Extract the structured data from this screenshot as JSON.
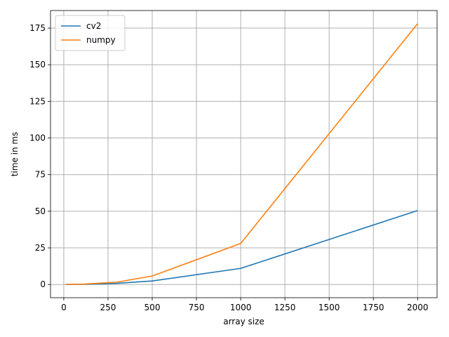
{
  "chart_data": {
    "type": "line",
    "xlabel": "array size",
    "ylabel": "time in ms",
    "xlim": [
      -75,
      2110
    ],
    "ylim": [
      -9,
      187
    ],
    "xticks": [
      0,
      250,
      500,
      750,
      1000,
      1250,
      1500,
      1750,
      2000
    ],
    "yticks": [
      0,
      25,
      50,
      75,
      100,
      125,
      150,
      175
    ],
    "grid": true,
    "legend_position": "upper-left",
    "x": [
      10,
      100,
      300,
      500,
      1000,
      2000
    ],
    "series": [
      {
        "name": "cv2",
        "color": "#1f77b4",
        "values": [
          0.02,
          0.1,
          0.8,
          2.4,
          11,
          50.5
        ]
      },
      {
        "name": "numpy",
        "color": "#ff7f0e",
        "values": [
          0.05,
          0.2,
          1.6,
          5.8,
          28,
          178
        ]
      }
    ]
  }
}
